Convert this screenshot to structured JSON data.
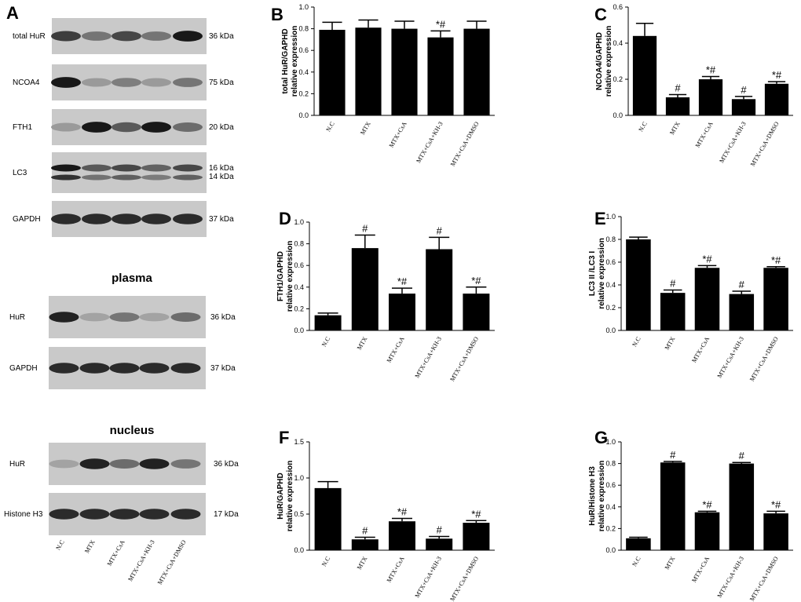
{
  "blots": {
    "panel_letter": "A",
    "lanes": [
      "N.C",
      "MTX",
      "MTX+CsA",
      "MTX+CsA+KH-3",
      "MTX+CsA+DMSO"
    ],
    "rows": [
      {
        "label": "total HuR",
        "kda": "36 kDa",
        "intensity": [
          0.75,
          0.45,
          0.7,
          0.45,
          0.95
        ]
      },
      {
        "label": "NCOA4",
        "kda": "75 kDa",
        "intensity": [
          0.95,
          0.25,
          0.4,
          0.25,
          0.45
        ]
      },
      {
        "label": "FTH1",
        "kda": "20 kDa",
        "intensity": [
          0.25,
          0.95,
          0.6,
          0.95,
          0.5
        ]
      },
      {
        "label": "LC3",
        "kda": "16 kDa",
        "kda2": "14 kDa",
        "intensity": [
          0.95,
          0.6,
          0.7,
          0.55,
          0.7
        ]
      },
      {
        "label": "GAPDH",
        "kda": "37 kDa",
        "intensity": [
          0.85,
          0.85,
          0.85,
          0.85,
          0.85
        ]
      },
      {
        "label": "HuR",
        "kda": "36 kDa",
        "intensity": [
          0.9,
          0.2,
          0.45,
          0.2,
          0.5
        ]
      },
      {
        "label": "GAPDH",
        "kda": "37 kDa",
        "intensity": [
          0.85,
          0.85,
          0.85,
          0.85,
          0.85
        ]
      },
      {
        "label": "HuR",
        "kda": "36 kDa",
        "intensity": [
          0.2,
          0.9,
          0.5,
          0.9,
          0.45
        ]
      },
      {
        "label": "Histone H3",
        "kda": "17 kDa",
        "intensity": [
          0.85,
          0.85,
          0.85,
          0.85,
          0.85
        ]
      }
    ],
    "sections": [
      "plasma",
      "nucleus"
    ]
  },
  "chart_data": [
    {
      "panel": "B",
      "type": "bar",
      "categories": [
        "N.C",
        "MTX",
        "MTX+CsA",
        "MTX+CsA+KH-3",
        "MTX+CsA+DMSO"
      ],
      "values": [
        0.79,
        0.81,
        0.8,
        0.72,
        0.8
      ],
      "errors": [
        0.07,
        0.07,
        0.07,
        0.06,
        0.07
      ],
      "annotations": [
        "",
        "",
        "",
        "*#",
        ""
      ],
      "ylabel": [
        "total HuR/GAPHD",
        "relative expression"
      ],
      "ylim": [
        0,
        1.0
      ],
      "yticks": [
        "0.0",
        "0.2",
        "0.4",
        "0.6",
        "0.8",
        "1.0"
      ]
    },
    {
      "panel": "C",
      "type": "bar",
      "categories": [
        "N.C",
        "MTX",
        "MTX+CsA",
        "MTX+CsA+KH-3",
        "MTX+CsA+DMSO"
      ],
      "values": [
        0.44,
        0.1,
        0.2,
        0.09,
        0.175
      ],
      "errors": [
        0.07,
        0.015,
        0.015,
        0.015,
        0.012
      ],
      "annotations": [
        "",
        "#",
        "*#",
        "#",
        "*#"
      ],
      "ylabel": [
        "NCOA4/GAPHD",
        "relative expression"
      ],
      "ylim": [
        0,
        0.6
      ],
      "yticks": [
        "0.0",
        "0.2",
        "0.4",
        "0.6"
      ]
    },
    {
      "panel": "D",
      "type": "bar",
      "categories": [
        "N.C",
        "MTX",
        "MTX+CsA",
        "MTX+CsA+KH-3",
        "MTX+CsA+DMSO"
      ],
      "values": [
        0.14,
        0.76,
        0.34,
        0.75,
        0.34
      ],
      "errors": [
        0.02,
        0.12,
        0.05,
        0.11,
        0.06
      ],
      "annotations": [
        "",
        "#",
        "*#",
        "#",
        "*#"
      ],
      "ylabel": [
        "FTH1/GAPHD",
        "relative expression"
      ],
      "ylim": [
        0,
        1.0
      ],
      "yticks": [
        "0.0",
        "0.2",
        "0.4",
        "0.6",
        "0.8",
        "1.0"
      ]
    },
    {
      "panel": "E",
      "type": "bar",
      "categories": [
        "N.C",
        "MTX",
        "MTX+CsA",
        "MTX+CsA+KH-3",
        "MTX+CsA+DMSO"
      ],
      "values": [
        0.8,
        0.33,
        0.55,
        0.32,
        0.55
      ],
      "errors": [
        0.02,
        0.025,
        0.02,
        0.025,
        0.01
      ],
      "annotations": [
        "",
        "#",
        "*#",
        "#",
        "*#"
      ],
      "ylabel": [
        "LC3 II /LC3 I",
        "relative expression"
      ],
      "ylim": [
        0,
        1.0
      ],
      "yticks": [
        "0.0",
        "0.2",
        "0.4",
        "0.6",
        "0.8",
        "1.0"
      ]
    },
    {
      "panel": "F",
      "type": "bar",
      "categories": [
        "N.C",
        "MTX",
        "MTX+CsA",
        "MTX+CsA+KH-3",
        "MTX+CsA+DMSO"
      ],
      "values": [
        0.86,
        0.15,
        0.4,
        0.16,
        0.38
      ],
      "errors": [
        0.09,
        0.03,
        0.04,
        0.03,
        0.03
      ],
      "annotations": [
        "",
        "#",
        "*#",
        "#",
        "*#"
      ],
      "ylabel": [
        "HuR/GAPHD",
        "relative expression"
      ],
      "ylim": [
        0,
        1.5
      ],
      "yticks": [
        "0.0",
        "0.5",
        "1.0",
        "1.5"
      ]
    },
    {
      "panel": "G",
      "type": "bar",
      "categories": [
        "N.C",
        "MTX",
        "MTX+CsA",
        "MTX+CsA+KH-3",
        "MTX+CsA+DMSO"
      ],
      "values": [
        0.11,
        0.81,
        0.35,
        0.8,
        0.34
      ],
      "errors": [
        0.01,
        0.01,
        0.01,
        0.01,
        0.02
      ],
      "annotations": [
        "",
        "#",
        "*#",
        "#",
        "*#"
      ],
      "ylabel": [
        "HuR/Histone H3",
        "relative expression"
      ],
      "ylim": [
        0,
        1.0
      ],
      "yticks": [
        "0.0",
        "0.2",
        "0.4",
        "0.6",
        "0.8",
        "1.0"
      ]
    }
  ]
}
